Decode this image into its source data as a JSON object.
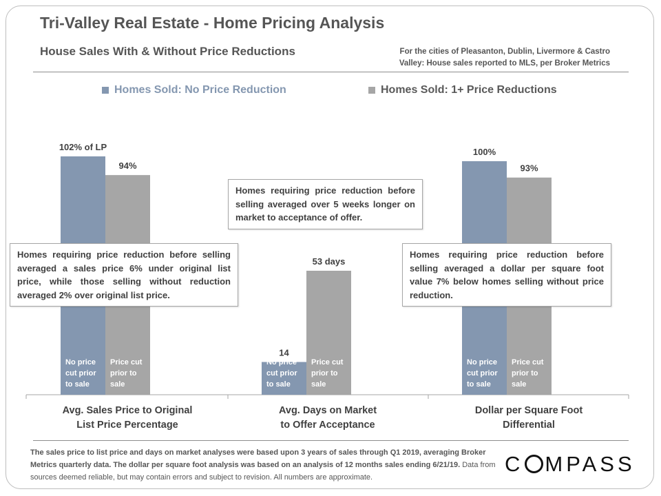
{
  "header": {
    "title": "Tri-Valley Real Estate - Home Pricing Analysis",
    "subtitle": "House Sales With & Without Price Reductions",
    "source_line1": "For the cities of Pleasanton, Dublin, Livermore & Castro",
    "source_line2": "Valley: House sales reported to MLS, per Broker Metrics"
  },
  "colors": {
    "no_reduction": "#8497B0",
    "with_reduction": "#A6A6A6",
    "text": "#404040"
  },
  "chart_data": {
    "type": "bar",
    "title": "",
    "categories": [
      [
        "Avg. Sales Price to Original",
        "List Price Percentage"
      ],
      [
        "Avg. Days on Market",
        "to Offer Acceptance"
      ],
      [
        "Dollar per Square Foot",
        "Differential"
      ]
    ],
    "series": [
      {
        "name": "Homes Sold: No Price Reduction",
        "values": [
          102,
          14,
          100
        ],
        "data_labels": [
          "102% of LP",
          "14",
          "100%"
        ],
        "bar_text": [
          "No price",
          "cut prior",
          "to sale"
        ]
      },
      {
        "name": "Homes Sold: 1+ Price Reductions",
        "values": [
          94,
          53,
          93
        ],
        "data_labels": [
          "94%",
          "53 days",
          "93%"
        ],
        "bar_text": [
          "Price cut",
          "prior to",
          "sale"
        ]
      }
    ],
    "axis_note": "each category group has its own scale",
    "legend_position": "top",
    "grid": false
  },
  "notes": {
    "price": "Homes requiring price reduction before selling averaged a sales price 6% under original list price, while those selling without reduction averaged 2% over original list price.",
    "days": "Homes requiring price reduction before selling averaged over 5 weeks longer on market to acceptance of offer.",
    "dollar": "Homes requiring price reduction before selling averaged a dollar per square foot value 7% below homes selling without price reduction."
  },
  "footer": {
    "main": "The sales price to list price and days on market analyses were based upon 3 years of sales through Q1 2019, averaging Broker Metrics quarterly data. The dollar per square foot analysis was based on an analysis of 12 months sales ending 6/21/19.",
    "disclaimer": "Data from sources deemed reliable, but may contain errors and subject to revision. All numbers are approximate."
  },
  "logo": {
    "before": "C",
    "after": "MPASS"
  }
}
